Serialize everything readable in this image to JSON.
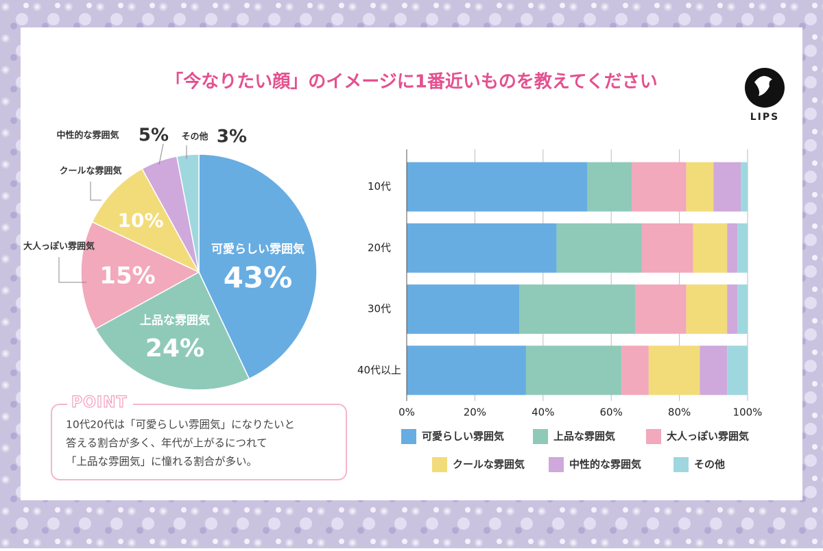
{
  "title": "「今なりたい顔」のイメージに1番近いものを教えてください",
  "logo": "LIPS",
  "point": {
    "heading": "POINT",
    "lines": [
      "10代20代は「可愛らしい雰囲気」になりたいと",
      "答える割合が多く、年代が上がるにつれて",
      "「上品な雰囲気」に憧れる割合が多い。"
    ]
  },
  "chart_data": [
    {
      "type": "pie",
      "categories": [
        "可愛らしい雰囲気",
        "上品な雰囲気",
        "大人っぽい雰囲気",
        "クールな雰囲気",
        "中性的な雰囲気",
        "その他"
      ],
      "values": [
        43,
        24,
        15,
        10,
        5,
        3
      ],
      "value_labels": [
        "43%",
        "24%",
        "15%",
        "10%",
        "5%",
        "3%"
      ],
      "colors": [
        "#67ade2",
        "#8fcab9",
        "#f2a9bb",
        "#f2dc7a",
        "#cfa8dc",
        "#9fd7df"
      ]
    },
    {
      "type": "stacked-barh",
      "categories": [
        "10代",
        "20代",
        "30代",
        "40代以上"
      ],
      "series": [
        {
          "name": "可愛らしい雰囲気",
          "color": "#67ade2",
          "values": [
            53,
            44,
            33,
            35
          ]
        },
        {
          "name": "上品な雰囲気",
          "color": "#8fcab9",
          "values": [
            13,
            25,
            34,
            28
          ]
        },
        {
          "name": "大人っぽい雰囲気",
          "color": "#f2a9bb",
          "values": [
            16,
            15,
            15,
            8
          ]
        },
        {
          "name": "クールな雰囲気",
          "color": "#f2dc7a",
          "values": [
            8,
            10,
            12,
            15
          ]
        },
        {
          "name": "中性的な雰囲気",
          "color": "#cfa8dc",
          "values": [
            8,
            3,
            3,
            8
          ]
        },
        {
          "name": "その他",
          "color": "#9fd7df",
          "values": [
            2,
            3,
            3,
            6
          ]
        }
      ],
      "xlim": [
        0,
        100
      ],
      "xticks": [
        {
          "value": 0,
          "label": "0%"
        },
        {
          "value": 20,
          "label": "20%"
        },
        {
          "value": 40,
          "label": "40%"
        },
        {
          "value": 60,
          "label": "60%"
        },
        {
          "value": 80,
          "label": "80%"
        },
        {
          "value": 100,
          "label": "100%"
        }
      ],
      "grid": true
    }
  ]
}
